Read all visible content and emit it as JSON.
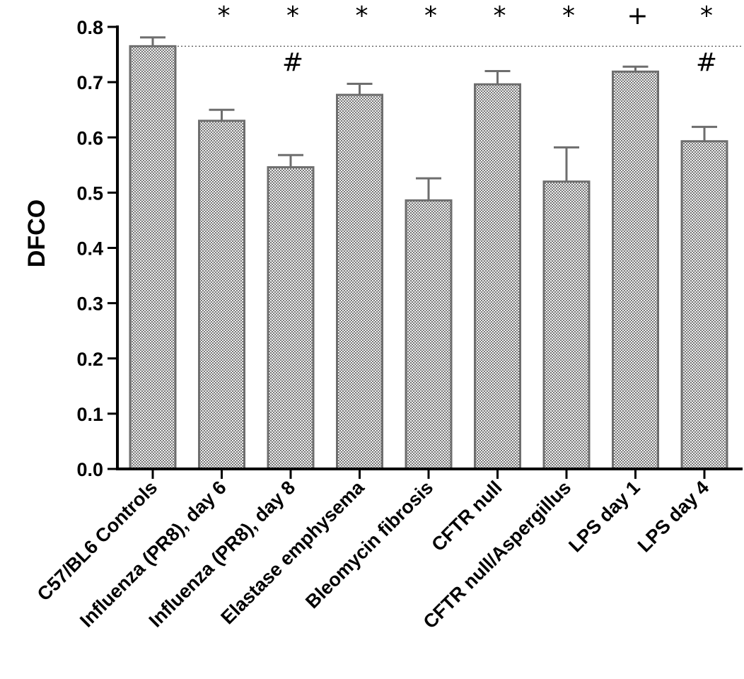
{
  "chart_data": {
    "type": "bar",
    "title": "",
    "xlabel": "",
    "ylabel": "DFCO",
    "ylim": [
      0,
      0.8
    ],
    "yticks": [
      "0.0",
      "0.1",
      "0.2",
      "0.3",
      "0.4",
      "0.5",
      "0.6",
      "0.7",
      "0.8"
    ],
    "grid": false,
    "categories": [
      "C57/BL6 Controls",
      "Influenza (PR8), day 6",
      "Influenza (PR8), day 8",
      "Elastase emphysema",
      "Bleomycin fibrosis",
      "CFTR null",
      "CFTR null/Aspergillus",
      "LPS day 1",
      "LPS day 4"
    ],
    "values": [
      0.765,
      0.63,
      0.546,
      0.677,
      0.486,
      0.696,
      0.52,
      0.719,
      0.593
    ],
    "errors": [
      0.016,
      0.02,
      0.022,
      0.02,
      0.04,
      0.024,
      0.062,
      0.009,
      0.026
    ],
    "reference_line": 0.765,
    "significance_top": [
      "",
      "*",
      "*",
      "*",
      "*",
      "*",
      "*",
      "+",
      "*"
    ],
    "significance_second": [
      "",
      "",
      "#",
      "",
      "",
      "",
      "",
      "",
      "#"
    ],
    "colors": {
      "bar_fill": "#b0b0b0",
      "bar_stroke": "#6e6e6e",
      "axis": "#000000"
    }
  }
}
